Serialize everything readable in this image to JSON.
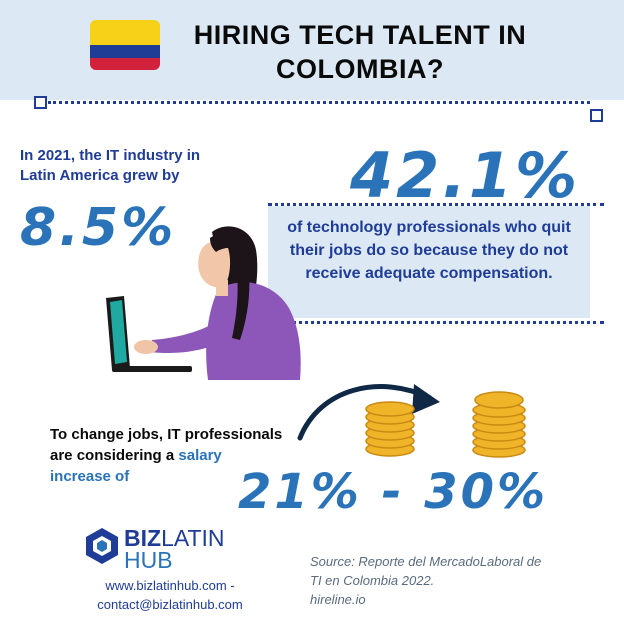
{
  "header": {
    "title_line1": "HIRING TECH TALENT IN",
    "title_line2": "COLOMBIA?"
  },
  "flag": {
    "colors": [
      "#f7d117",
      "#1f3c96",
      "#d2213a"
    ]
  },
  "stat_growth": {
    "line1": "In 2021, the IT industry in",
    "line2": "Latin America grew by",
    "value": "8.5%"
  },
  "stat_quit": {
    "value": "42.1%",
    "text": "of technology professionals who quit their jobs do so because they do not receive adequate compensation."
  },
  "stat_salary": {
    "line1": "To change jobs, IT professionals",
    "line2_prefix": "are considering a ",
    "line2_highlight": "salary",
    "line3": "increase of",
    "value": "21% - 30%"
  },
  "footer": {
    "logo_biz": "BIZ",
    "logo_latin": "LATIN",
    "logo_hub": "HUB",
    "website_line1": "www.bizlatinhub.com -",
    "website_line2": "contact@bizlatinhub.com",
    "source_line1": "Source: Reporte del MercadoLaboral de",
    "source_line2": "TI en Colombia 2022.",
    "source_line3": "hireline.io"
  },
  "colors": {
    "navy": "#1f3c96",
    "accent_blue": "#2a73b9",
    "band": "#dce9f5",
    "coin": "#f0b429"
  }
}
